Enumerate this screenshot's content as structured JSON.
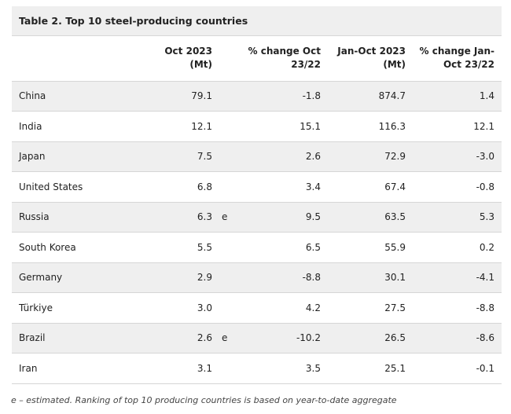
{
  "table": {
    "title": "Table 2. Top 10 steel-producing countries",
    "headers": {
      "country": "",
      "oct": [
        "Oct 2023",
        "(Mt)"
      ],
      "oct_change": [
        "% change Oct",
        "23/22"
      ],
      "ytd": [
        "Jan-Oct 2023",
        "(Mt)"
      ],
      "ytd_change": [
        "% change Jan-",
        "Oct 23/22"
      ]
    },
    "rows": [
      {
        "country": "China",
        "oct": "79.1",
        "flag": "",
        "oct_change": "-1.8",
        "ytd": "874.7",
        "ytd_change": "1.4"
      },
      {
        "country": "India",
        "oct": "12.1",
        "flag": "",
        "oct_change": "15.1",
        "ytd": "116.3",
        "ytd_change": "12.1"
      },
      {
        "country": "Japan",
        "oct": "7.5",
        "flag": "",
        "oct_change": "2.6",
        "ytd": "72.9",
        "ytd_change": "-3.0"
      },
      {
        "country": "United States",
        "oct": "6.8",
        "flag": "",
        "oct_change": "3.4",
        "ytd": "67.4",
        "ytd_change": "-0.8"
      },
      {
        "country": "Russia",
        "oct": "6.3",
        "flag": "e",
        "oct_change": "9.5",
        "ytd": "63.5",
        "ytd_change": "5.3"
      },
      {
        "country": "South Korea",
        "oct": "5.5",
        "flag": "",
        "oct_change": "6.5",
        "ytd": "55.9",
        "ytd_change": "0.2"
      },
      {
        "country": "Germany",
        "oct": "2.9",
        "flag": "",
        "oct_change": "-8.8",
        "ytd": "30.1",
        "ytd_change": "-4.1"
      },
      {
        "country": "Türkiye",
        "oct": "3.0",
        "flag": "",
        "oct_change": "4.2",
        "ytd": "27.5",
        "ytd_change": "-8.8"
      },
      {
        "country": "Brazil",
        "oct": "2.6",
        "flag": "e",
        "oct_change": "-10.2",
        "ytd": "26.5",
        "ytd_change": "-8.6"
      },
      {
        "country": "Iran",
        "oct": "3.1",
        "flag": "",
        "oct_change": "3.5",
        "ytd": "25.1",
        "ytd_change": "-0.1"
      }
    ],
    "footnote": "e – estimated. Ranking of top 10 producing countries is based on year-to-date aggregate"
  }
}
